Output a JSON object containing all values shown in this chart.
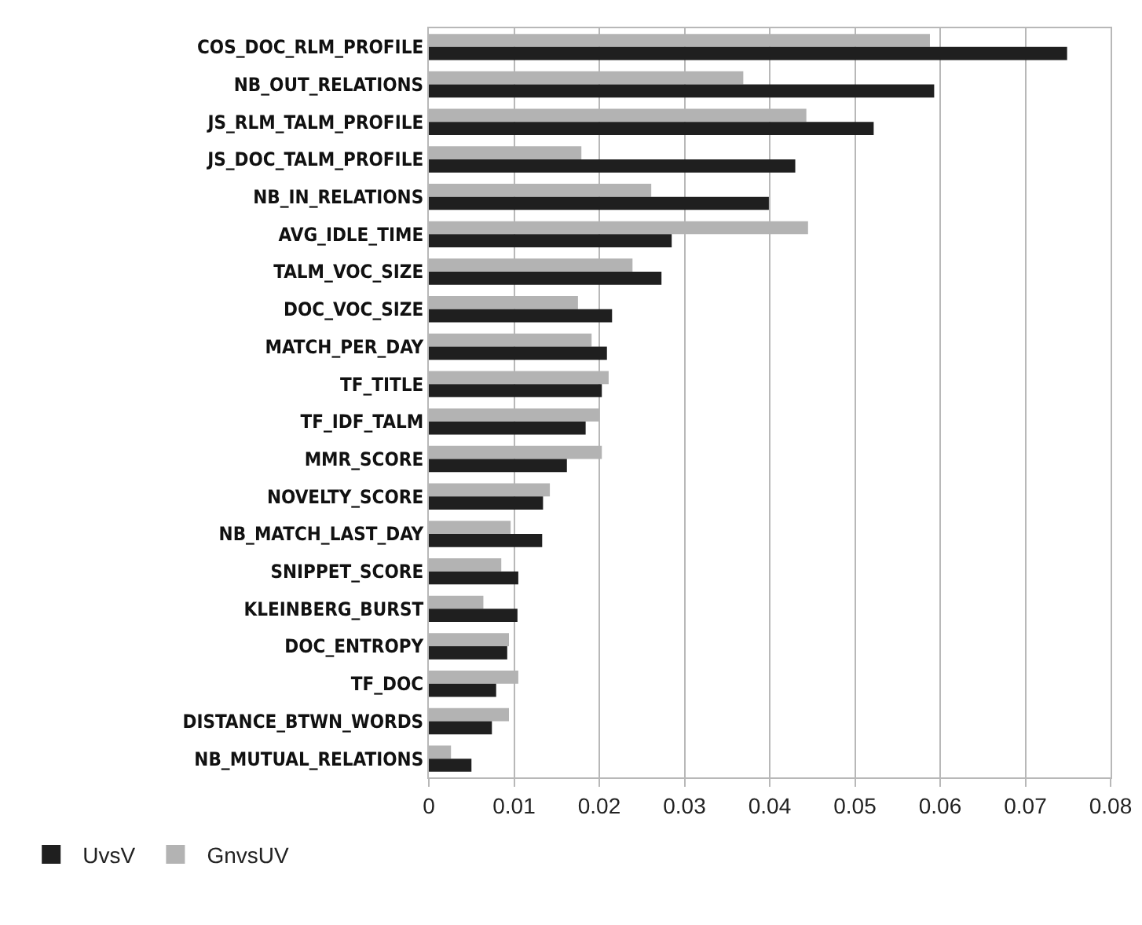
{
  "chart_data": {
    "type": "bar",
    "orientation": "horizontal",
    "categories": [
      "COS_DOC_RLM_PROFILE",
      "NB_OUT_RELATIONS",
      "JS_RLM_TALM_PROFILE",
      "JS_DOC_TALM_PROFILE",
      "NB_IN_RELATIONS",
      "AVG_IDLE_TIME",
      "TALM_VOC_SIZE",
      "DOC_VOC_SIZE",
      "MATCH_PER_DAY",
      "TF_TITLE",
      "TF_IDF_TALM",
      "MMR_SCORE",
      "NOVELTY_SCORE",
      "NB_MATCH_LAST_DAY",
      "SNIPPET_SCORE",
      "KLEINBERG_BURST",
      "DOC_ENTROPY",
      "TF_DOC",
      "DISTANCE_BTWN_WORDS",
      "NB_MUTUAL_RELATIONS"
    ],
    "series": [
      {
        "name": "UvsV",
        "color": "#1f1f1f",
        "values": [
          0.0749,
          0.0593,
          0.0522,
          0.043,
          0.0399,
          0.0285,
          0.0273,
          0.0215,
          0.0209,
          0.0203,
          0.0184,
          0.0162,
          0.0134,
          0.0133,
          0.0105,
          0.0104,
          0.0092,
          0.0079,
          0.0074,
          0.005
        ]
      },
      {
        "name": "GnvsUV",
        "color": "#b3b3b3",
        "values": [
          0.0588,
          0.0369,
          0.0443,
          0.0179,
          0.0261,
          0.0445,
          0.0239,
          0.0175,
          0.0191,
          0.0211,
          0.02,
          0.0203,
          0.0142,
          0.0096,
          0.0085,
          0.0064,
          0.0094,
          0.0105,
          0.0094,
          0.0026
        ]
      }
    ],
    "xlim": [
      0,
      0.08
    ],
    "xticks": [
      0,
      0.01,
      0.02,
      0.03,
      0.04,
      0.05,
      0.06,
      0.07,
      0.08
    ],
    "grid": "x",
    "legend": "bottom left"
  }
}
